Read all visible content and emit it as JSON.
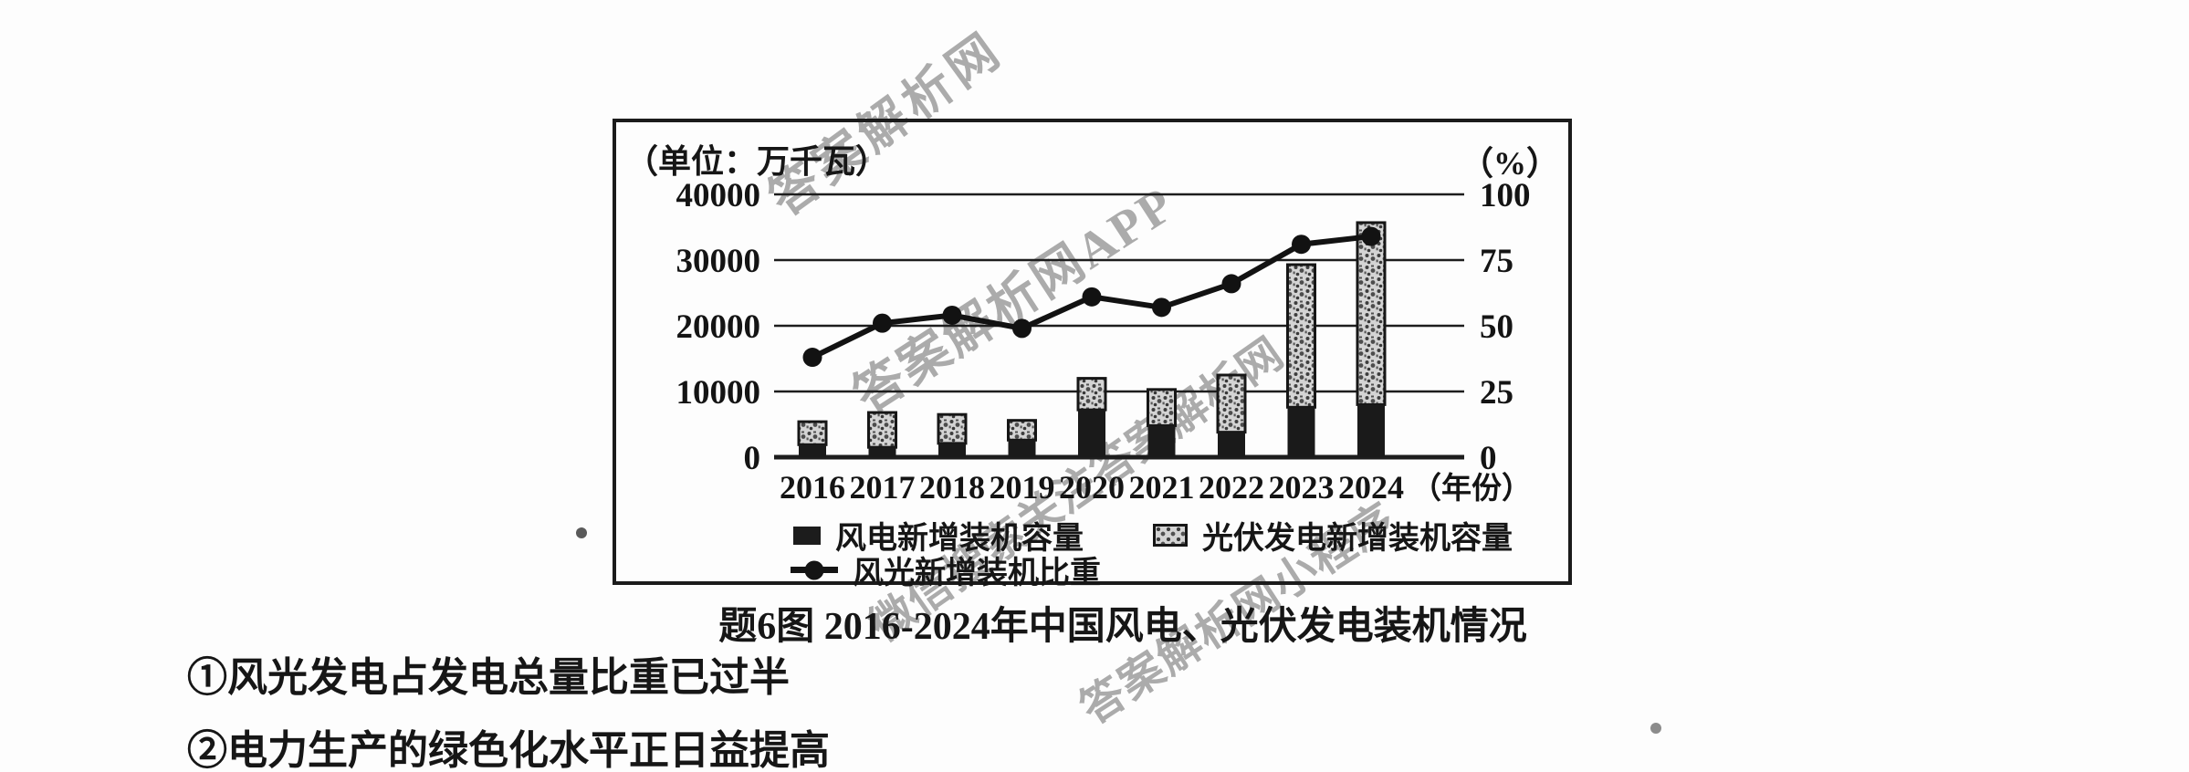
{
  "colors": {
    "ink": "#161616",
    "watermark_gray": "#ababab",
    "bar_wind": "#1c1c1c",
    "bar_pv_base": "#d4d4d4",
    "background": "#fdfdfd"
  },
  "watermarks": [
    "答案解析网",
    "答案解析网APP",
    "微信搜索关注答案解析网",
    "答案解析网小程序"
  ],
  "chart_data": {
    "type": "bar",
    "subtype": "stacked-bar-with-line-dual-axis",
    "title": "题6图 2016-2024年中国风电、光伏发电装机情况",
    "categories": [
      "2016",
      "2017",
      "2018",
      "2019",
      "2020",
      "2021",
      "2022",
      "2023",
      "2024"
    ],
    "series": [
      {
        "name": "风电新增装机容量",
        "type": "bar",
        "stack": "capacity",
        "style": "solid-black",
        "values": [
          1900,
          1500,
          2100,
          2600,
          7200,
          4800,
          3800,
          7600,
          8000
        ]
      },
      {
        "name": "光伏发电新增装机容量",
        "type": "bar",
        "stack": "capacity",
        "style": "speckle-texture",
        "values": [
          3500,
          5300,
          4400,
          3000,
          4800,
          5500,
          8700,
          21700,
          27700
        ]
      },
      {
        "name": "风光新增装机比重",
        "type": "line",
        "axis": "right",
        "marker": "filled-circle",
        "values": [
          38,
          51,
          54,
          49,
          61,
          57,
          66,
          81,
          84
        ]
      }
    ],
    "left_axis": {
      "unit_label": "（单位：万千瓦）",
      "ticks": [
        40000,
        30000,
        20000,
        10000,
        0
      ],
      "min": 0,
      "max": 40000
    },
    "right_axis": {
      "unit_label": "（%）",
      "ticks": [
        100,
        75,
        50,
        25,
        0
      ],
      "min": 0,
      "max": 100
    },
    "x_axis": {
      "suffix_label": "（年份）"
    },
    "grid": true,
    "legend_position": "bottom-inside"
  },
  "figure": {
    "caption": "题6图 2016-2024年中国风电、光伏发电装机情况"
  },
  "statements": [
    "①风光发电占发电总量比重已过半",
    "②电力生产的绿色化水平正日益提高"
  ]
}
